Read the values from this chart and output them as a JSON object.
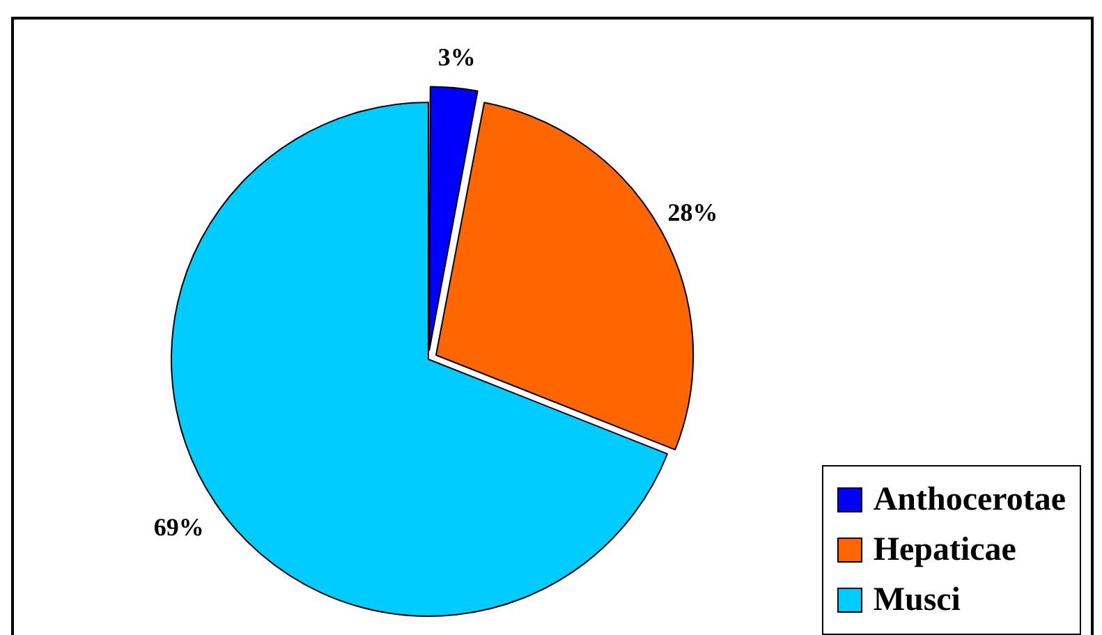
{
  "chart_data": {
    "type": "pie",
    "categories": [
      "Anthocerotae",
      "Hepaticae",
      "Musci"
    ],
    "values": [
      3,
      28,
      69
    ],
    "colors": [
      "#0000ff",
      "#ff6600",
      "#00ccff"
    ],
    "value_labels": [
      "3%",
      "28%",
      "69%"
    ],
    "legend": "bottom right"
  }
}
